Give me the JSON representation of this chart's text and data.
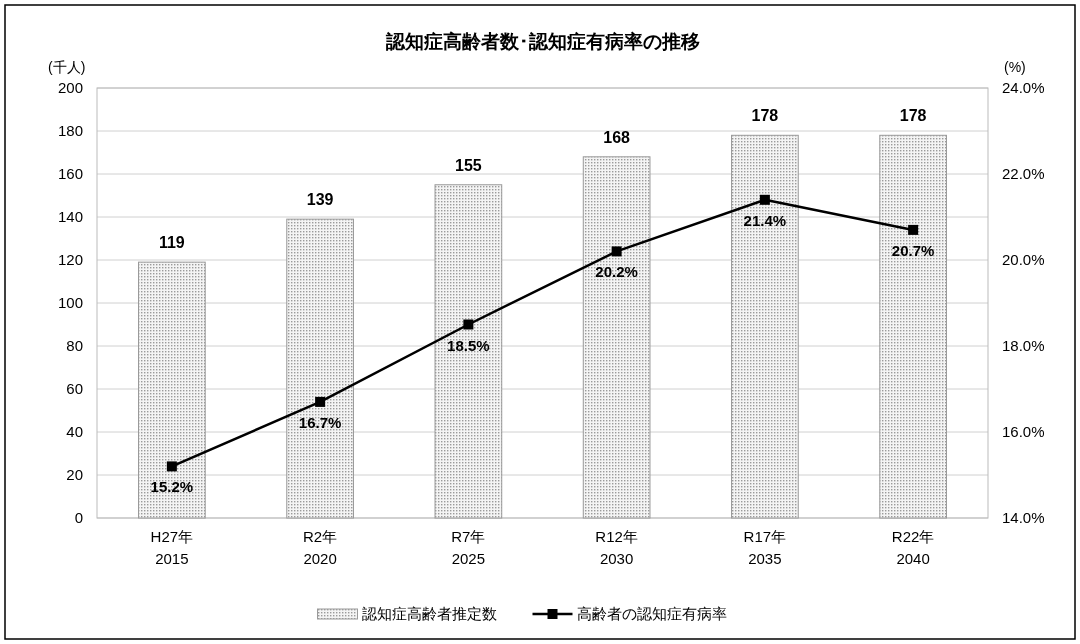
{
  "chart_data": {
    "type": "bar",
    "title": "認知症高齢者数･認知症有病率の推移",
    "ylabel": "(千人)",
    "y2label": "(%)",
    "categories": [
      "H27年\n2015",
      "R2年\n2020",
      "R7年\n2025",
      "R12年\n2030",
      "R17年\n2035",
      "R22年\n2040"
    ],
    "series": [
      {
        "name": "認知症高齢者推定数",
        "color": "#9a9a9a",
        "values": [
          119,
          139,
          155,
          168,
          178,
          178
        ],
        "value_labels": [
          "119",
          "139",
          "155",
          "168",
          "178",
          "178"
        ]
      },
      {
        "name": "高齢者の認知症有病率",
        "type": "line",
        "axis": "y2",
        "color": "#000000",
        "marker": "square",
        "values": [
          15.2,
          16.7,
          18.5,
          20.2,
          21.4,
          20.7
        ],
        "value_labels": [
          "15.2%",
          "16.7%",
          "18.5%",
          "20.2%",
          "21.4%",
          "20.7%"
        ]
      }
    ],
    "ylim": [
      0,
      200
    ],
    "yticks": [
      0,
      20,
      40,
      60,
      80,
      100,
      120,
      140,
      160,
      180,
      200
    ],
    "y2lim": [
      14,
      24
    ],
    "y2ticks": [
      {
        "value": 14,
        "label": "14.0%"
      },
      {
        "value": 16,
        "label": "16.0%"
      },
      {
        "value": 18,
        "label": "18.0%"
      },
      {
        "value": 20,
        "label": "20.0%"
      },
      {
        "value": 22,
        "label": "22.0%"
      },
      {
        "value": 24,
        "label": "24.0%"
      }
    ],
    "grid": "y",
    "legend": "bottom"
  }
}
